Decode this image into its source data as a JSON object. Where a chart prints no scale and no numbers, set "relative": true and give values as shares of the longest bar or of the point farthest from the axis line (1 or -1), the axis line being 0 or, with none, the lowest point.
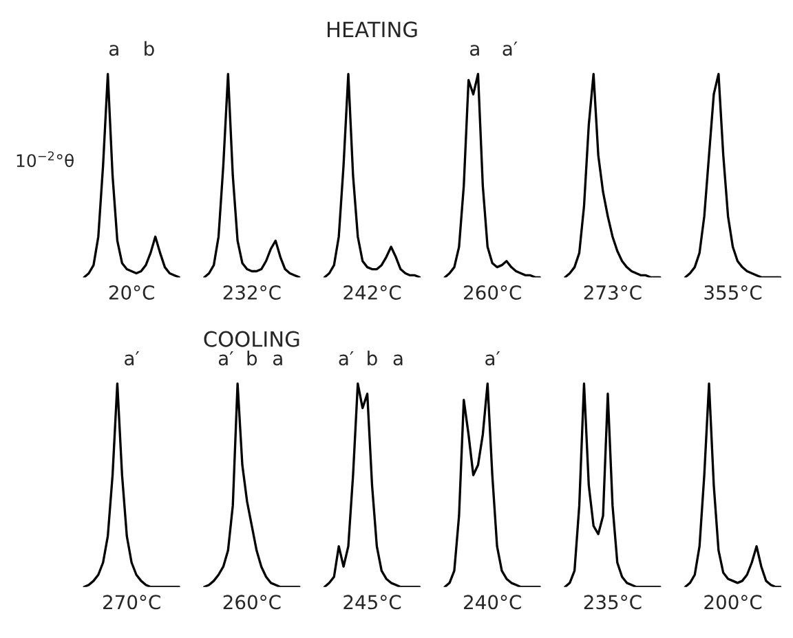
{
  "chart_data": [
    {
      "type": "line",
      "relative": true,
      "xlabel": "20°C",
      "ylabel": "10$^{−2}$°θ",
      "annotations": [
        "a",
        "b"
      ],
      "categories": [
        null,
        null,
        null,
        null,
        null,
        null,
        null,
        null,
        null,
        null,
        null,
        null,
        null,
        null,
        null,
        null,
        null,
        null,
        null,
        null,
        null
      ],
      "series": [
        {
          "color": "#000000",
          "values": [
            0,
            0.02,
            0.06,
            0.2,
            0.55,
            1,
            0.5,
            0.18,
            0.07,
            0.04,
            0.03,
            0.02,
            0.03,
            0.06,
            0.12,
            0.2,
            0.12,
            0.05,
            0.02,
            0.01,
            0
          ]
        }
      ]
    },
    {
      "type": "line",
      "relative": true,
      "xlabel": "232°C",
      "categories": [
        null,
        null,
        null,
        null,
        null,
        null,
        null,
        null,
        null,
        null,
        null,
        null,
        null,
        null,
        null,
        null,
        null,
        null,
        null,
        null,
        null
      ],
      "series": [
        {
          "color": "#000000",
          "values": [
            0,
            0.02,
            0.06,
            0.2,
            0.55,
            1,
            0.5,
            0.18,
            0.07,
            0.04,
            0.03,
            0.03,
            0.04,
            0.08,
            0.14,
            0.18,
            0.1,
            0.04,
            0.02,
            0.01,
            0
          ]
        }
      ]
    },
    {
      "type": "line",
      "relative": true,
      "title": "HEATING",
      "xlabel": "242°C",
      "categories": [
        null,
        null,
        null,
        null,
        null,
        null,
        null,
        null,
        null,
        null,
        null,
        null,
        null,
        null,
        null,
        null,
        null,
        null,
        null,
        null,
        null
      ],
      "series": [
        {
          "color": "#000000",
          "values": [
            0,
            0.02,
            0.06,
            0.2,
            0.55,
            1,
            0.5,
            0.2,
            0.08,
            0.05,
            0.04,
            0.04,
            0.06,
            0.1,
            0.15,
            0.1,
            0.04,
            0.02,
            0.01,
            0.01,
            0
          ]
        }
      ]
    },
    {
      "type": "line",
      "relative": true,
      "xlabel": "260°C",
      "annotations": [
        "a",
        "a′"
      ],
      "categories": [
        null,
        null,
        null,
        null,
        null,
        null,
        null,
        null,
        null,
        null,
        null,
        null,
        null,
        null,
        null,
        null,
        null,
        null,
        null,
        null,
        null
      ],
      "series": [
        {
          "color": "#000000",
          "values": [
            0,
            0.02,
            0.05,
            0.15,
            0.45,
            0.97,
            0.9,
            1,
            0.45,
            0.15,
            0.07,
            0.05,
            0.06,
            0.08,
            0.05,
            0.03,
            0.02,
            0.01,
            0.01,
            0,
            0
          ]
        }
      ]
    },
    {
      "type": "line",
      "relative": true,
      "xlabel": "273°C",
      "categories": [
        null,
        null,
        null,
        null,
        null,
        null,
        null,
        null,
        null,
        null,
        null,
        null,
        null,
        null,
        null,
        null,
        null,
        null,
        null,
        null,
        null
      ],
      "series": [
        {
          "color": "#000000",
          "values": [
            0,
            0.02,
            0.05,
            0.12,
            0.35,
            0.75,
            1,
            0.6,
            0.42,
            0.3,
            0.2,
            0.13,
            0.08,
            0.05,
            0.03,
            0.02,
            0.01,
            0.01,
            0,
            0,
            0
          ]
        }
      ]
    },
    {
      "type": "line",
      "relative": true,
      "xlabel": "355°C",
      "categories": [
        null,
        null,
        null,
        null,
        null,
        null,
        null,
        null,
        null,
        null,
        null,
        null,
        null,
        null,
        null,
        null,
        null,
        null,
        null,
        null,
        null
      ],
      "series": [
        {
          "color": "#000000",
          "values": [
            0,
            0.02,
            0.05,
            0.12,
            0.3,
            0.6,
            0.9,
            1,
            0.6,
            0.3,
            0.15,
            0.08,
            0.05,
            0.03,
            0.02,
            0.01,
            0,
            0,
            0,
            0,
            0
          ]
        }
      ]
    },
    {
      "type": "line",
      "relative": true,
      "xlabel": "270°C",
      "annotations": [
        "a′"
      ],
      "categories": [
        null,
        null,
        null,
        null,
        null,
        null,
        null,
        null,
        null,
        null,
        null,
        null,
        null,
        null,
        null,
        null,
        null,
        null,
        null,
        null,
        null
      ],
      "series": [
        {
          "color": "#000000",
          "values": [
            0,
            0.01,
            0.03,
            0.06,
            0.12,
            0.25,
            0.55,
            1,
            0.55,
            0.25,
            0.12,
            0.06,
            0.03,
            0.01,
            0,
            0,
            0,
            0,
            0,
            0,
            0
          ]
        }
      ]
    },
    {
      "type": "line",
      "relative": true,
      "title": "COOLING",
      "xlabel": "260°C",
      "annotations": [
        "a′",
        "b",
        "a"
      ],
      "categories": [
        null,
        null,
        null,
        null,
        null,
        null,
        null,
        null,
        null,
        null,
        null,
        null,
        null,
        null,
        null,
        null,
        null,
        null,
        null,
        null,
        null
      ],
      "series": [
        {
          "color": "#000000",
          "values": [
            0,
            0.01,
            0.03,
            0.06,
            0.1,
            0.18,
            0.4,
            1,
            0.6,
            0.42,
            0.3,
            0.18,
            0.1,
            0.05,
            0.02,
            0.01,
            0,
            0,
            0,
            0,
            0
          ]
        }
      ]
    },
    {
      "type": "line",
      "relative": true,
      "xlabel": "245°C",
      "annotations": [
        "a′",
        "b",
        "a"
      ],
      "categories": [
        null,
        null,
        null,
        null,
        null,
        null,
        null,
        null,
        null,
        null,
        null,
        null,
        null,
        null,
        null,
        null,
        null,
        null,
        null,
        null,
        null
      ],
      "series": [
        {
          "color": "#000000",
          "values": [
            0,
            0.02,
            0.05,
            0.2,
            0.1,
            0.2,
            0.55,
            1,
            0.88,
            0.95,
            0.5,
            0.2,
            0.08,
            0.04,
            0.02,
            0.01,
            0,
            0,
            0,
            0,
            0
          ]
        }
      ]
    },
    {
      "type": "line",
      "relative": true,
      "xlabel": "240°C",
      "annotations": [
        "a′"
      ],
      "categories": [
        null,
        null,
        null,
        null,
        null,
        null,
        null,
        null,
        null,
        null,
        null,
        null,
        null,
        null,
        null,
        null,
        null,
        null,
        null,
        null,
        null
      ],
      "series": [
        {
          "color": "#000000",
          "values": [
            0,
            0.02,
            0.08,
            0.35,
            0.92,
            0.75,
            0.55,
            0.6,
            0.75,
            1,
            0.55,
            0.2,
            0.08,
            0.04,
            0.02,
            0.01,
            0,
            0,
            0,
            0,
            0
          ]
        }
      ]
    },
    {
      "type": "line",
      "relative": true,
      "xlabel": "235°C",
      "categories": [
        null,
        null,
        null,
        null,
        null,
        null,
        null,
        null,
        null,
        null,
        null,
        null,
        null,
        null,
        null,
        null,
        null,
        null,
        null,
        null,
        null
      ],
      "series": [
        {
          "color": "#000000",
          "values": [
            0,
            0.02,
            0.08,
            0.4,
            1,
            0.5,
            0.3,
            0.26,
            0.35,
            0.95,
            0.4,
            0.12,
            0.05,
            0.02,
            0.01,
            0,
            0,
            0,
            0,
            0,
            0
          ]
        }
      ]
    },
    {
      "type": "line",
      "relative": true,
      "xlabel": "200°C",
      "categories": [
        null,
        null,
        null,
        null,
        null,
        null,
        null,
        null,
        null,
        null,
        null,
        null,
        null,
        null,
        null,
        null,
        null,
        null,
        null,
        null,
        null
      ],
      "series": [
        {
          "color": "#000000",
          "values": [
            0,
            0.02,
            0.06,
            0.2,
            0.55,
            1,
            0.5,
            0.18,
            0.07,
            0.04,
            0.03,
            0.02,
            0.03,
            0.06,
            0.12,
            0.2,
            0.1,
            0.03,
            0.01,
            0,
            0
          ]
        }
      ]
    }
  ]
}
